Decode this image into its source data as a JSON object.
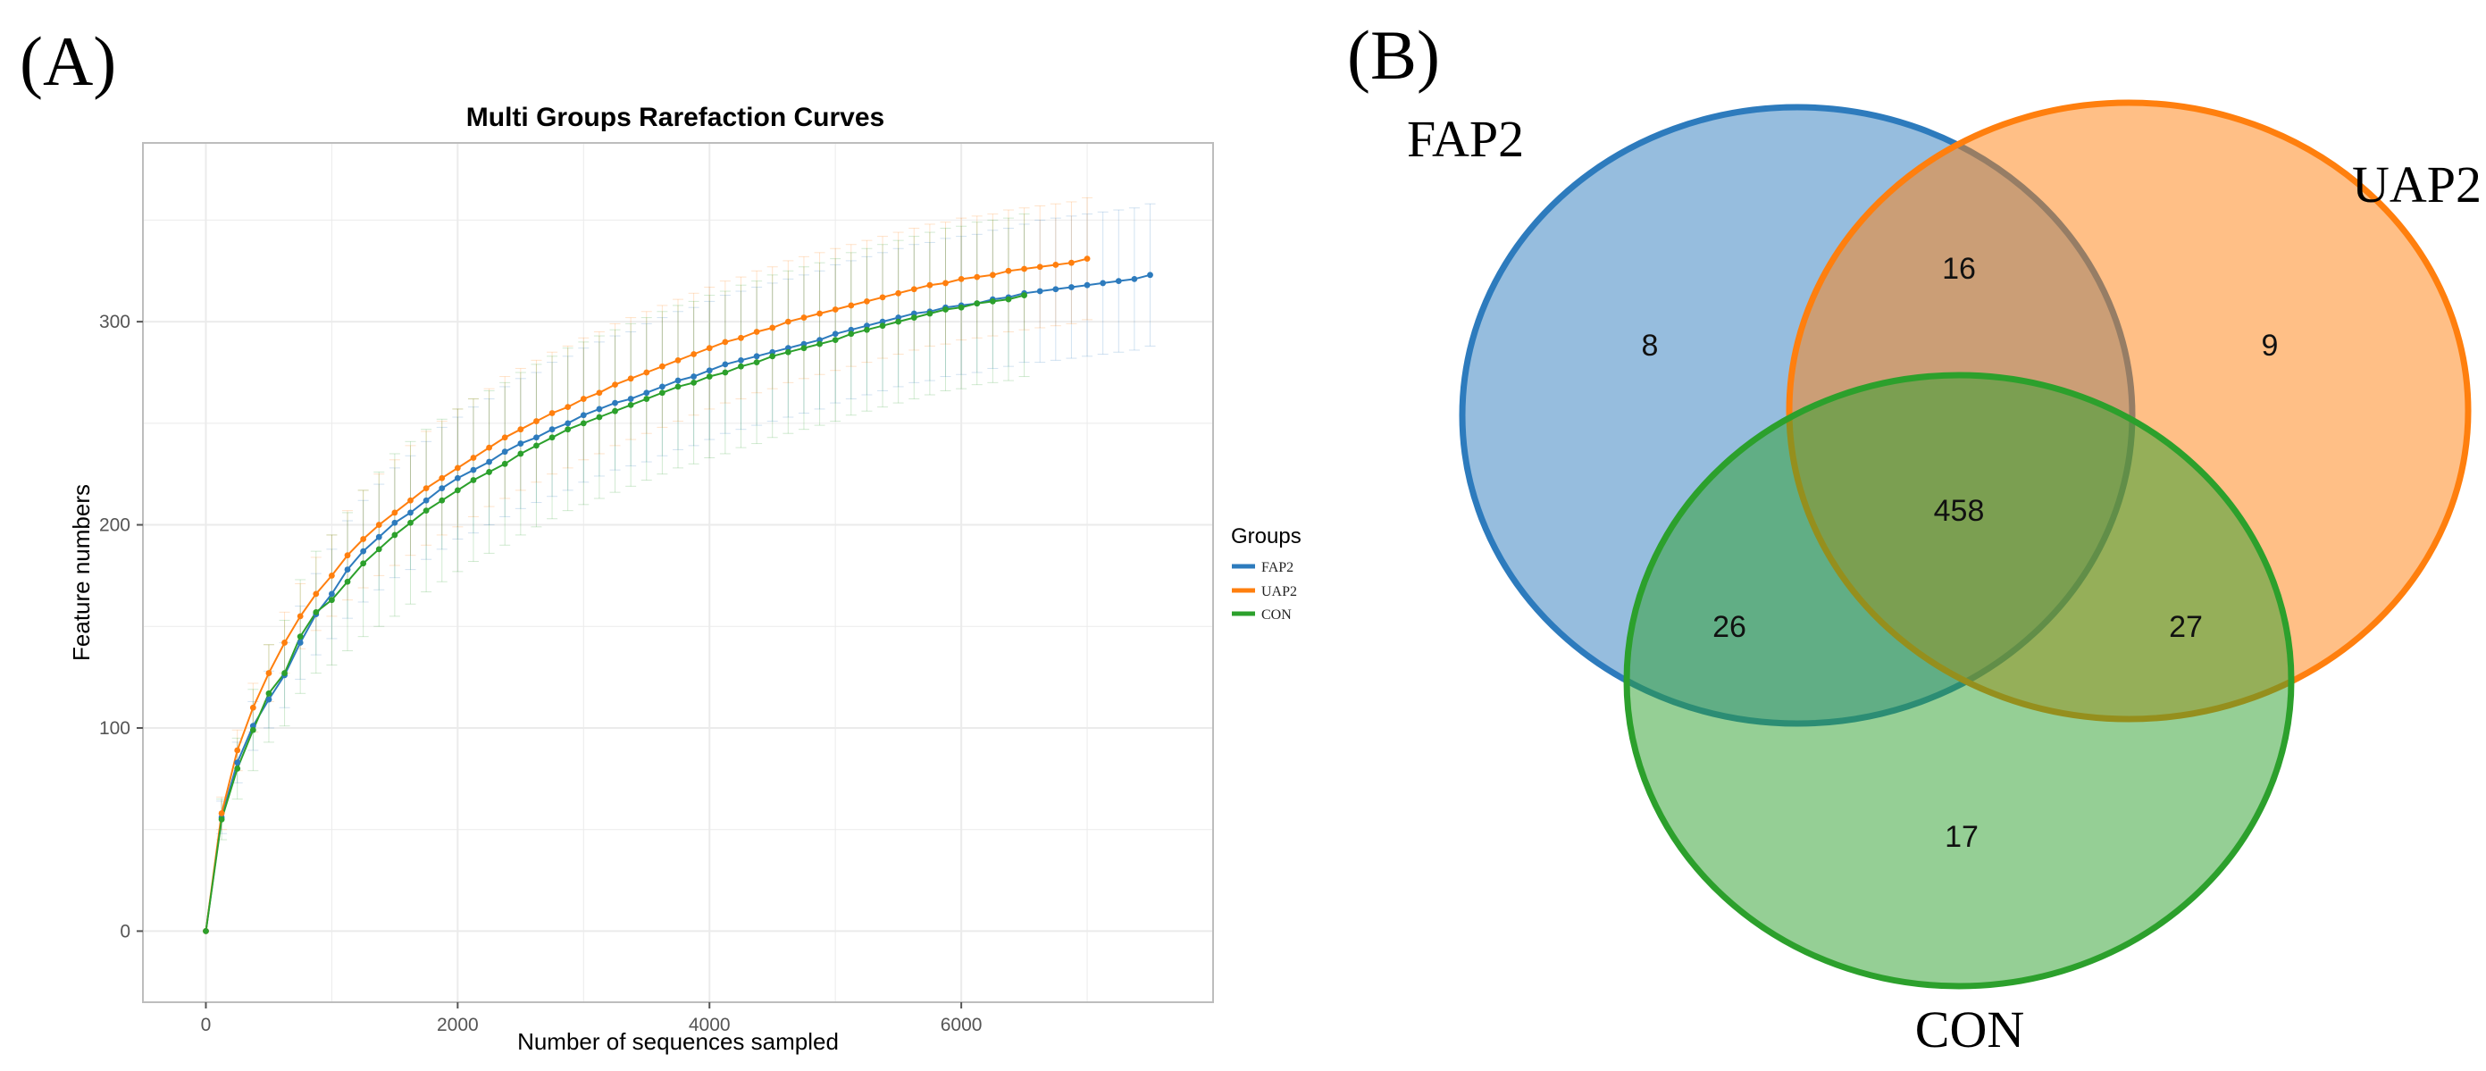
{
  "panels": {
    "a": "(A)",
    "b": "(B)"
  },
  "colors": {
    "FAP2": "#2d7bbd",
    "UAP2": "#ff7f0e",
    "CON": "#2ca02c",
    "grid": "#ebebeb",
    "panel_border": "#bdbdbd"
  },
  "chart_data": [
    {
      "type": "line",
      "title": "Multi Groups Rarefaction Curves",
      "xlabel": "Number of sequences sampled",
      "ylabel": "Feature numbers",
      "xlim": [
        -500,
        8000
      ],
      "ylim": [
        -35,
        388
      ],
      "xticks": [
        0,
        2000,
        4000,
        6000
      ],
      "yticks": [
        0,
        100,
        200,
        300
      ],
      "legend_title": "Groups",
      "legend_position": "right",
      "grid": true,
      "series": [
        {
          "name": "FAP2",
          "x": [
            0,
            125,
            250,
            375,
            500,
            625,
            750,
            875,
            1000,
            1125,
            1250,
            1375,
            1500,
            1625,
            1750,
            1875,
            2000,
            2125,
            2250,
            2375,
            2500,
            2625,
            2750,
            2875,
            3000,
            3125,
            3250,
            3375,
            3500,
            3625,
            3750,
            3875,
            4000,
            4125,
            4250,
            4375,
            4500,
            4625,
            4750,
            4875,
            5000,
            5125,
            5250,
            5375,
            5500,
            5625,
            5750,
            5875,
            6000,
            6125,
            6250,
            6375,
            6500,
            6625,
            6750,
            6875,
            7000,
            7125,
            7250,
            7375,
            7500
          ],
          "values": [
            0,
            56,
            83,
            101,
            114,
            126,
            142,
            156,
            166,
            178,
            187,
            194,
            201,
            206,
            212,
            218,
            223,
            227,
            231,
            236,
            240,
            243,
            247,
            250,
            254,
            257,
            260,
            262,
            265,
            268,
            271,
            273,
            276,
            279,
            281,
            283,
            285,
            287,
            289,
            291,
            294,
            296,
            298,
            300,
            302,
            304,
            305,
            307,
            308,
            309,
            311,
            312,
            314,
            315,
            316,
            317,
            318,
            319,
            320,
            321,
            323
          ],
          "error": [
            0,
            8,
            10,
            12,
            14,
            16,
            18,
            20,
            22,
            24,
            25,
            26,
            27,
            28,
            29,
            30,
            30,
            31,
            31,
            32,
            32,
            32,
            33,
            33,
            33,
            33,
            33,
            33,
            34,
            34,
            34,
            34,
            34,
            34,
            34,
            34,
            34,
            34,
            34,
            34,
            34,
            34,
            34,
            34,
            34,
            34,
            34,
            34,
            34,
            34,
            34,
            34,
            34,
            35,
            35,
            35,
            35,
            35,
            35,
            35,
            35
          ]
        },
        {
          "name": "UAP2",
          "x": [
            0,
            125,
            250,
            375,
            500,
            625,
            750,
            875,
            1000,
            1125,
            1250,
            1375,
            1500,
            1625,
            1750,
            1875,
            2000,
            2125,
            2250,
            2375,
            2500,
            2625,
            2750,
            2875,
            3000,
            3125,
            3250,
            3375,
            3500,
            3625,
            3750,
            3875,
            4000,
            4125,
            4250,
            4375,
            4500,
            4625,
            4750,
            4875,
            5000,
            5125,
            5250,
            5375,
            5500,
            5625,
            5750,
            5875,
            6000,
            6125,
            6250,
            6375,
            6500,
            6625,
            6750,
            6875,
            7000
          ],
          "values": [
            0,
            58,
            89,
            110,
            127,
            142,
            155,
            166,
            175,
            185,
            193,
            200,
            206,
            212,
            218,
            223,
            228,
            233,
            238,
            243,
            247,
            251,
            255,
            258,
            262,
            265,
            269,
            272,
            275,
            278,
            281,
            284,
            287,
            290,
            292,
            295,
            297,
            300,
            302,
            304,
            306,
            308,
            310,
            312,
            314,
            316,
            318,
            319,
            321,
            322,
            323,
            325,
            326,
            327,
            328,
            329,
            331
          ],
          "error": [
            0,
            8,
            10,
            12,
            14,
            15,
            16,
            18,
            20,
            22,
            24,
            25,
            26,
            27,
            28,
            28,
            29,
            29,
            29,
            30,
            30,
            30,
            30,
            30,
            30,
            30,
            30,
            30,
            30,
            30,
            30,
            30,
            30,
            30,
            30,
            30,
            30,
            30,
            30,
            30,
            30,
            30,
            30,
            30,
            30,
            30,
            30,
            30,
            30,
            30,
            30,
            30,
            30,
            30,
            30,
            30,
            30
          ]
        },
        {
          "name": "CON",
          "x": [
            0,
            125,
            250,
            375,
            500,
            625,
            750,
            875,
            1000,
            1125,
            1250,
            1375,
            1500,
            1625,
            1750,
            1875,
            2000,
            2125,
            2250,
            2375,
            2500,
            2625,
            2750,
            2875,
            3000,
            3125,
            3250,
            3375,
            3500,
            3625,
            3750,
            3875,
            4000,
            4125,
            4250,
            4375,
            4500,
            4625,
            4750,
            4875,
            5000,
            5125,
            5250,
            5375,
            5500,
            5625,
            5750,
            5875,
            6000,
            6125,
            6250,
            6375,
            6500
          ],
          "values": [
            0,
            55,
            80,
            99,
            117,
            127,
            145,
            157,
            163,
            172,
            181,
            188,
            195,
            201,
            207,
            212,
            217,
            222,
            226,
            230,
            235,
            239,
            243,
            247,
            250,
            253,
            256,
            259,
            262,
            265,
            268,
            270,
            273,
            275,
            278,
            280,
            283,
            285,
            287,
            289,
            291,
            294,
            296,
            298,
            300,
            302,
            304,
            306,
            307,
            309,
            310,
            311,
            313
          ],
          "error": [
            0,
            10,
            15,
            20,
            24,
            26,
            28,
            30,
            32,
            34,
            36,
            38,
            40,
            40,
            40,
            40,
            40,
            40,
            40,
            40,
            40,
            40,
            40,
            40,
            40,
            40,
            40,
            40,
            40,
            40,
            40,
            40,
            40,
            40,
            40,
            40,
            40,
            40,
            40,
            40,
            40,
            40,
            40,
            40,
            40,
            40,
            40,
            40,
            40,
            40,
            40,
            40,
            40
          ]
        }
      ]
    },
    {
      "type": "venn",
      "sets": [
        "FAP2",
        "UAP2",
        "CON"
      ],
      "regions": [
        {
          "sets": [
            "FAP2"
          ],
          "value": "8"
        },
        {
          "sets": [
            "UAP2"
          ],
          "value": "9"
        },
        {
          "sets": [
            "CON"
          ],
          "value": "17"
        },
        {
          "sets": [
            "FAP2",
            "UAP2"
          ],
          "value": "16"
        },
        {
          "sets": [
            "FAP2",
            "CON"
          ],
          "value": "26"
        },
        {
          "sets": [
            "UAP2",
            "CON"
          ],
          "value": "27"
        },
        {
          "sets": [
            "FAP2",
            "UAP2",
            "CON"
          ],
          "value": "458"
        }
      ]
    }
  ]
}
